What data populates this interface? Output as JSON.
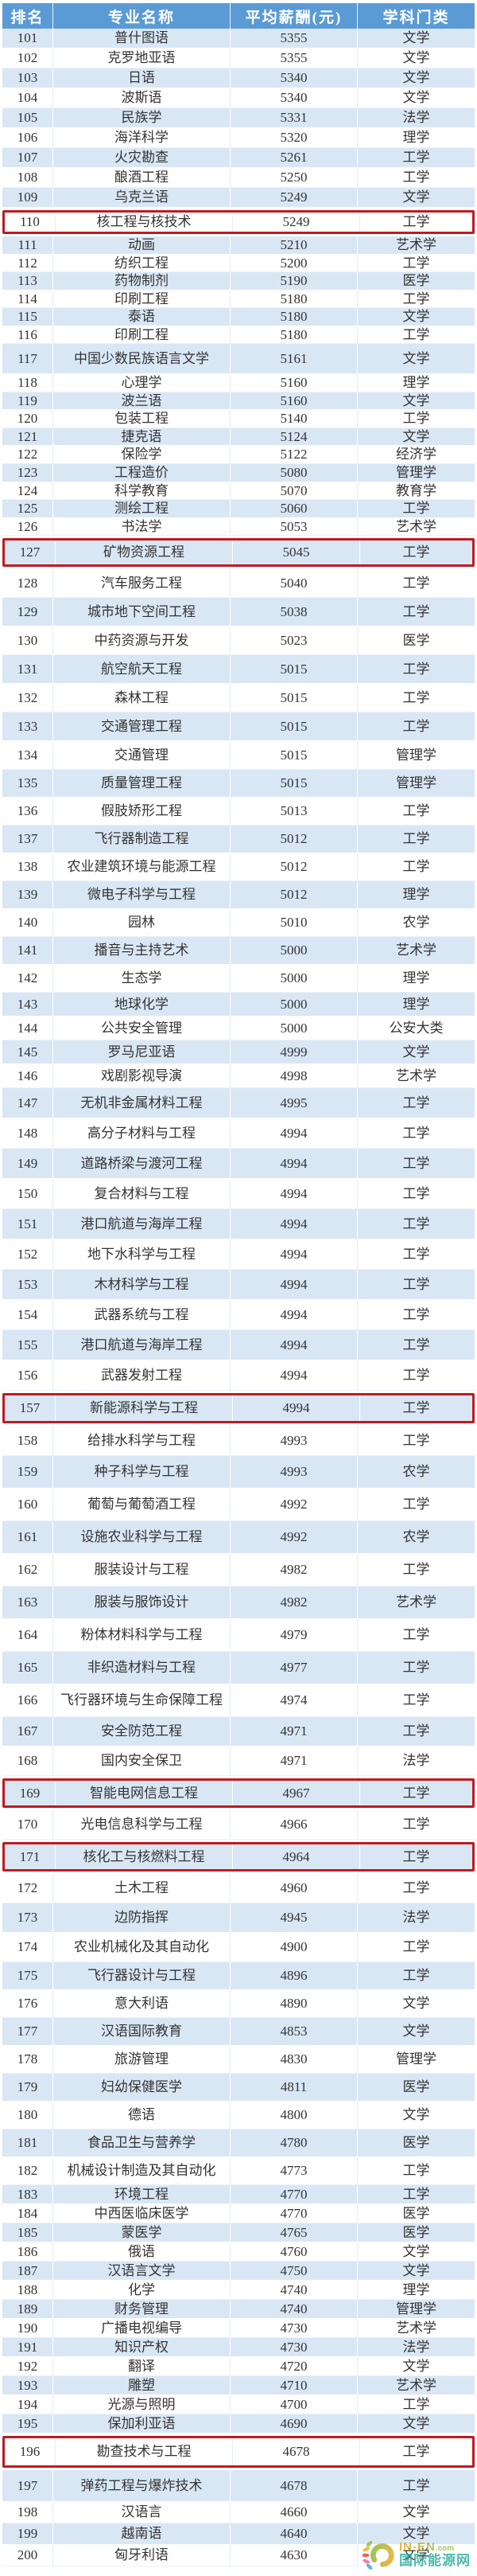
{
  "chart_data": {
    "type": "table",
    "columns": [
      "排名",
      "专业名称",
      "平均薪酬(元)",
      "学科门类"
    ],
    "rows": [
      [
        101,
        "普什图语",
        5355,
        "文学"
      ],
      [
        102,
        "克罗地亚语",
        5355,
        "文学"
      ],
      [
        103,
        "日语",
        5340,
        "文学"
      ],
      [
        104,
        "波斯语",
        5340,
        "文学"
      ],
      [
        105,
        "民族学",
        5331,
        "法学"
      ],
      [
        106,
        "海洋科学",
        5320,
        "理学"
      ],
      [
        107,
        "火灾勘查",
        5261,
        "工学"
      ],
      [
        108,
        "酿酒工程",
        5250,
        "工学"
      ],
      [
        109,
        "乌克兰语",
        5249,
        "文学"
      ],
      [
        110,
        "核工程与核技术",
        5249,
        "工学"
      ],
      [
        111,
        "动画",
        5210,
        "艺术学"
      ],
      [
        112,
        "纺织工程",
        5200,
        "工学"
      ],
      [
        113,
        "药物制剂",
        5190,
        "医学"
      ],
      [
        114,
        "印刷工程",
        5180,
        "工学"
      ],
      [
        115,
        "泰语",
        5180,
        "文学"
      ],
      [
        116,
        "印刷工程",
        5180,
        "工学"
      ],
      [
        117,
        "中国少数民族语言文学",
        5161,
        "文学"
      ],
      [
        118,
        "心理学",
        5160,
        "理学"
      ],
      [
        119,
        "波兰语",
        5160,
        "文学"
      ],
      [
        120,
        "包装工程",
        5140,
        "工学"
      ],
      [
        121,
        "捷克语",
        5124,
        "文学"
      ],
      [
        122,
        "保险学",
        5122,
        "经济学"
      ],
      [
        123,
        "工程造价",
        5080,
        "管理学"
      ],
      [
        124,
        "科学教育",
        5070,
        "教育学"
      ],
      [
        125,
        "测绘工程",
        5060,
        "工学"
      ],
      [
        126,
        "书法学",
        5053,
        "艺术学"
      ],
      [
        127,
        "矿物资源工程",
        5045,
        "工学"
      ],
      [
        128,
        "汽车服务工程",
        5040,
        "工学"
      ],
      [
        129,
        "城市地下空间工程",
        5038,
        "工学"
      ],
      [
        130,
        "中药资源与开发",
        5023,
        "医学"
      ],
      [
        131,
        "航空航天工程",
        5015,
        "工学"
      ],
      [
        132,
        "森林工程",
        5015,
        "工学"
      ],
      [
        133,
        "交通管理工程",
        5015,
        "工学"
      ],
      [
        134,
        "交通管理",
        5015,
        "管理学"
      ],
      [
        135,
        "质量管理工程",
        5015,
        "管理学"
      ],
      [
        136,
        "假肢矫形工程",
        5013,
        "工学"
      ],
      [
        137,
        "飞行器制造工程",
        5012,
        "工学"
      ],
      [
        138,
        "农业建筑环境与能源工程",
        5012,
        "工学"
      ],
      [
        139,
        "微电子科学与工程",
        5012,
        "理学"
      ],
      [
        140,
        "园林",
        5010,
        "农学"
      ],
      [
        141,
        "播音与主持艺术",
        5000,
        "艺术学"
      ],
      [
        142,
        "生态学",
        5000,
        "理学"
      ],
      [
        143,
        "地球化学",
        5000,
        "理学"
      ],
      [
        144,
        "公共安全管理",
        5000,
        "公安大类"
      ],
      [
        145,
        "罗马尼亚语",
        4999,
        "文学"
      ],
      [
        146,
        "戏剧影视导演",
        4998,
        "艺术学"
      ],
      [
        147,
        "无机非金属材料工程",
        4995,
        "工学"
      ],
      [
        148,
        "高分子材料与工程",
        4994,
        "工学"
      ],
      [
        149,
        "道路桥梁与渡河工程",
        4994,
        "工学"
      ],
      [
        150,
        "复合材料与工程",
        4994,
        "工学"
      ],
      [
        151,
        "港口航道与海岸工程",
        4994,
        "工学"
      ],
      [
        152,
        "地下水科学与工程",
        4994,
        "工学"
      ],
      [
        153,
        "木材科学与工程",
        4994,
        "工学"
      ],
      [
        154,
        "武器系统与工程",
        4994,
        "工学"
      ],
      [
        155,
        "港口航道与海岸工程",
        4994,
        "工学"
      ],
      [
        156,
        "武器发射工程",
        4994,
        "工学"
      ],
      [
        157,
        "新能源科学与工程",
        4994,
        "工学"
      ],
      [
        158,
        "给排水科学与工程",
        4993,
        "工学"
      ],
      [
        159,
        "种子科学与工程",
        4993,
        "农学"
      ],
      [
        160,
        "葡萄与葡萄酒工程",
        4992,
        "工学"
      ],
      [
        161,
        "设施农业科学与工程",
        4992,
        "农学"
      ],
      [
        162,
        "服装设计与工程",
        4982,
        "工学"
      ],
      [
        163,
        "服装与服饰设计",
        4982,
        "艺术学"
      ],
      [
        164,
        "粉体材料科学与工程",
        4979,
        "工学"
      ],
      [
        165,
        "非织造材料与工程",
        4977,
        "工学"
      ],
      [
        166,
        "飞行器环境与生命保障工程",
        4974,
        "工学"
      ],
      [
        167,
        "安全防范工程",
        4971,
        "工学"
      ],
      [
        168,
        "国内安全保卫",
        4971,
        "法学"
      ],
      [
        169,
        "智能电网信息工程",
        4967,
        "工学"
      ],
      [
        170,
        "光电信息科学与工程",
        4966,
        "工学"
      ],
      [
        171,
        "核化工与核燃料工程",
        4964,
        "工学"
      ],
      [
        172,
        "土木工程",
        4960,
        "工学"
      ],
      [
        173,
        "边防指挥",
        4945,
        "法学"
      ],
      [
        174,
        "农业机械化及其自动化",
        4900,
        "工学"
      ],
      [
        175,
        "飞行器设计与工程",
        4896,
        "工学"
      ],
      [
        176,
        "意大利语",
        4890,
        "文学"
      ],
      [
        177,
        "汉语国际教育",
        4853,
        "文学"
      ],
      [
        178,
        "旅游管理",
        4830,
        "管理学"
      ],
      [
        179,
        "妇幼保健医学",
        4811,
        "医学"
      ],
      [
        180,
        "德语",
        4800,
        "文学"
      ],
      [
        181,
        "食品卫生与营养学",
        4780,
        "医学"
      ],
      [
        182,
        "机械设计制造及其自动化",
        4773,
        "工学"
      ],
      [
        183,
        "环境工程",
        4770,
        "工学"
      ],
      [
        184,
        "中西医临床医学",
        4770,
        "医学"
      ],
      [
        185,
        "蒙医学",
        4765,
        "医学"
      ],
      [
        186,
        "俄语",
        4760,
        "文学"
      ],
      [
        187,
        "汉语言文学",
        4750,
        "文学"
      ],
      [
        188,
        "化学",
        4740,
        "理学"
      ],
      [
        189,
        "财务管理",
        4740,
        "管理学"
      ],
      [
        190,
        "广播电视编导",
        4730,
        "艺术学"
      ],
      [
        191,
        "知识产权",
        4730,
        "法学"
      ],
      [
        192,
        "翻译",
        4720,
        "文学"
      ],
      [
        193,
        "雕塑",
        4710,
        "艺术学"
      ],
      [
        194,
        "光源与照明",
        4700,
        "工学"
      ],
      [
        195,
        "保加利亚语",
        4690,
        "文学"
      ],
      [
        196,
        "勘查技术与工程",
        4678,
        "工学"
      ],
      [
        197,
        "弹药工程与爆炸技术",
        4678,
        "工学"
      ],
      [
        198,
        "汉语言",
        4660,
        "文学"
      ],
      [
        199,
        "越南语",
        4640,
        "文学"
      ],
      [
        200,
        "匈牙利语",
        4630,
        "文学"
      ]
    ],
    "highlighted_ranks": [
      110,
      127,
      157,
      169,
      171,
      196
    ],
    "legend_position": "none",
    "grid": true
  },
  "watermark": {
    "site": "IN-EN",
    "site_suffix": ".com",
    "name": "国际能源网"
  },
  "colors": {
    "header_bg": "#5B9BD5",
    "header_text": "#FFFFFF",
    "row_alt_bg": "#D9E7F5",
    "row_bg": "#FFFFFF",
    "highlight_border": "#BE1B20",
    "watermark_teal": "#2FAE9E",
    "watermark_orange": "#F2A51F",
    "watermark_green": "#8BC53F"
  }
}
